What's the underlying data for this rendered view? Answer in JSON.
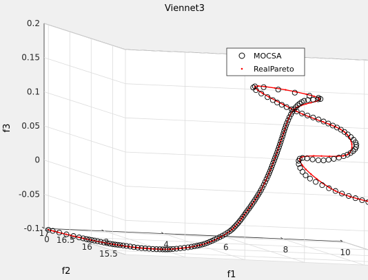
{
  "chart_data": {
    "type": "scatter",
    "title": "Viennet3",
    "xlabel": "f1",
    "ylabel": "f2",
    "zlabel": "f3",
    "xlim": [
      0,
      10
    ],
    "ylim": [
      15.2,
      17.1
    ],
    "zlim": [
      -0.1,
      0.2
    ],
    "x_ticks": [
      "0",
      "2",
      "4",
      "6",
      "8",
      "10"
    ],
    "y_ticks": [
      "17",
      "16.5",
      "16",
      "15.5"
    ],
    "z_ticks": [
      "0.2",
      "0.15",
      "0.1",
      "0.05",
      "0",
      "-0.05",
      "-0.1"
    ],
    "grid": true,
    "legend_position": "top-right",
    "legend": [
      "MOCSA",
      "RealPareto"
    ],
    "colors": {
      "mocsa": "#000000",
      "real_pareto": "#ff0000"
    },
    "series": [
      {
        "name": "MOCSA",
        "marker": "circle",
        "points": [
          [
            0.0,
            17.0,
            -0.1
          ],
          [
            0.6,
            16.7,
            -0.104
          ],
          [
            0.9,
            16.55,
            -0.105
          ],
          [
            1.2,
            16.4,
            -0.106
          ],
          [
            1.5,
            16.3,
            -0.106
          ],
          [
            1.9,
            16.15,
            -0.106
          ],
          [
            2.3,
            16.0,
            -0.104
          ],
          [
            2.6,
            15.9,
            -0.101
          ],
          [
            3.0,
            15.75,
            -0.094
          ],
          [
            3.3,
            15.65,
            -0.087
          ],
          [
            3.6,
            15.57,
            -0.077
          ],
          [
            3.9,
            15.48,
            -0.064
          ],
          [
            4.1,
            15.42,
            -0.05
          ],
          [
            4.3,
            15.38,
            -0.034
          ],
          [
            4.5,
            15.34,
            -0.017
          ],
          [
            4.7,
            15.31,
            0.001
          ],
          [
            4.9,
            15.29,
            0.022
          ],
          [
            5.05,
            15.27,
            0.042
          ],
          [
            5.2,
            15.26,
            0.062
          ],
          [
            5.35,
            15.26,
            0.082
          ],
          [
            5.5,
            15.26,
            0.102
          ],
          [
            5.75,
            15.27,
            0.122
          ],
          [
            6.1,
            15.28,
            0.135
          ],
          [
            6.6,
            15.29,
            0.14
          ],
          [
            5.2,
            15.8,
            0.144
          ],
          [
            5.8,
            15.8,
            0.125
          ],
          [
            6.6,
            15.8,
            0.11
          ],
          [
            7.5,
            15.8,
            0.097
          ],
          [
            8.2,
            15.8,
            0.083
          ],
          [
            8.6,
            15.8,
            0.065
          ],
          [
            8.3,
            15.8,
            0.05
          ],
          [
            7.5,
            15.8,
            0.04
          ],
          [
            6.7,
            15.8,
            0.041
          ],
          [
            6.9,
            15.8,
            0.017
          ],
          [
            7.9,
            15.8,
            -0.004
          ],
          [
            9.0,
            15.8,
            -0.018
          ],
          [
            9.9,
            15.8,
            -0.025
          ],
          [
            10.4,
            15.8,
            -0.025
          ],
          [
            10.2,
            15.8,
            -0.034
          ],
          [
            9.9,
            15.8,
            -0.045
          ]
        ]
      },
      {
        "name": "RealPareto",
        "marker": "point",
        "points": [
          [
            0.0,
            17.0,
            -0.1
          ],
          [
            0.6,
            16.7,
            -0.104
          ],
          [
            1.2,
            16.4,
            -0.106
          ],
          [
            1.9,
            16.15,
            -0.106
          ],
          [
            2.6,
            15.9,
            -0.101
          ],
          [
            3.3,
            15.65,
            -0.087
          ],
          [
            3.9,
            15.48,
            -0.064
          ],
          [
            4.3,
            15.38,
            -0.034
          ],
          [
            4.7,
            15.31,
            0.001
          ],
          [
            5.05,
            15.27,
            0.042
          ],
          [
            5.35,
            15.26,
            0.082
          ],
          [
            5.75,
            15.27,
            0.122
          ],
          [
            6.6,
            15.29,
            0.14
          ],
          [
            5.2,
            15.8,
            0.144
          ],
          [
            6.6,
            15.8,
            0.11
          ],
          [
            8.2,
            15.8,
            0.083
          ],
          [
            8.3,
            15.8,
            0.05
          ],
          [
            6.7,
            15.8,
            0.041
          ],
          [
            7.9,
            15.8,
            -0.004
          ],
          [
            9.9,
            15.8,
            -0.025
          ],
          [
            10.2,
            15.8,
            -0.034
          ],
          [
            9.9,
            15.8,
            -0.045
          ]
        ]
      }
    ]
  }
}
